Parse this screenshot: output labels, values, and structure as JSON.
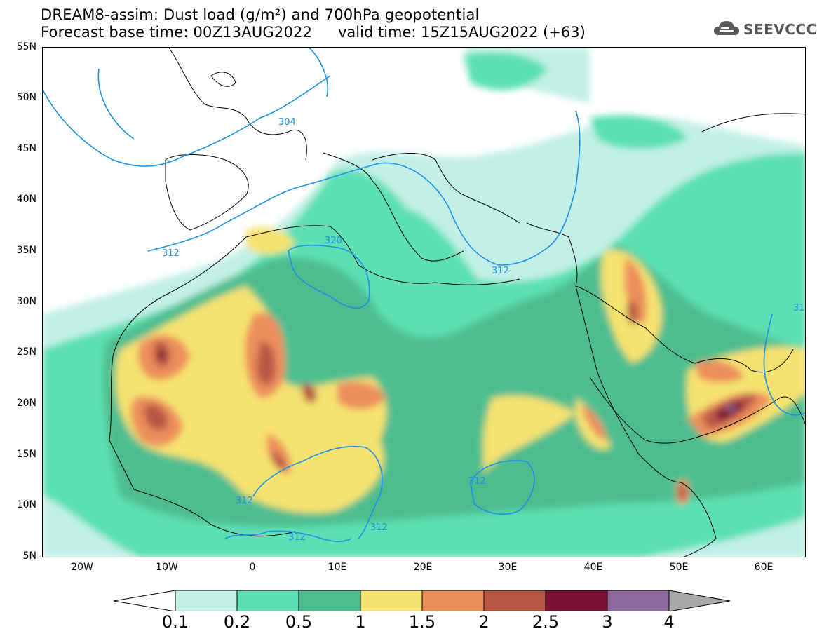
{
  "header": {
    "title_line1": "DREAM8-assim: Dust load (g/m²) and 700hPa geopotential",
    "title_line2": "Forecast base time: 00Z13AUG2022",
    "valid_time": "valid time: 15Z15AUG2022 (+63)",
    "logo_text": "SEEVCCC"
  },
  "axes": {
    "lat_labels": [
      "55N",
      "50N",
      "45N",
      "40N",
      "35N",
      "30N",
      "25N",
      "20N",
      "15N",
      "10N",
      "5N"
    ],
    "lon_labels": [
      "20W",
      "10W",
      "0",
      "10E",
      "20E",
      "30E",
      "40E",
      "50E",
      "60E"
    ]
  },
  "contour_labels": [
    "304",
    "312",
    "320",
    "312",
    "312",
    "312",
    "312",
    "312",
    "31"
  ],
  "colorbar": {
    "labels": [
      "0.1",
      "0.2",
      "0.5",
      "1",
      "1.5",
      "2",
      "2.5",
      "3",
      "4"
    ],
    "colors": [
      "#c2f0e6",
      "#5ce0b3",
      "#4dbd8f",
      "#f5e270",
      "#ec8d5c",
      "#b85645",
      "#7a1033",
      "#8e6aa0"
    ],
    "under_color": "#ffffff",
    "over_color": "#a8a8a8"
  },
  "colors": {
    "coast": "#000000",
    "contour": "#1e90e6"
  }
}
